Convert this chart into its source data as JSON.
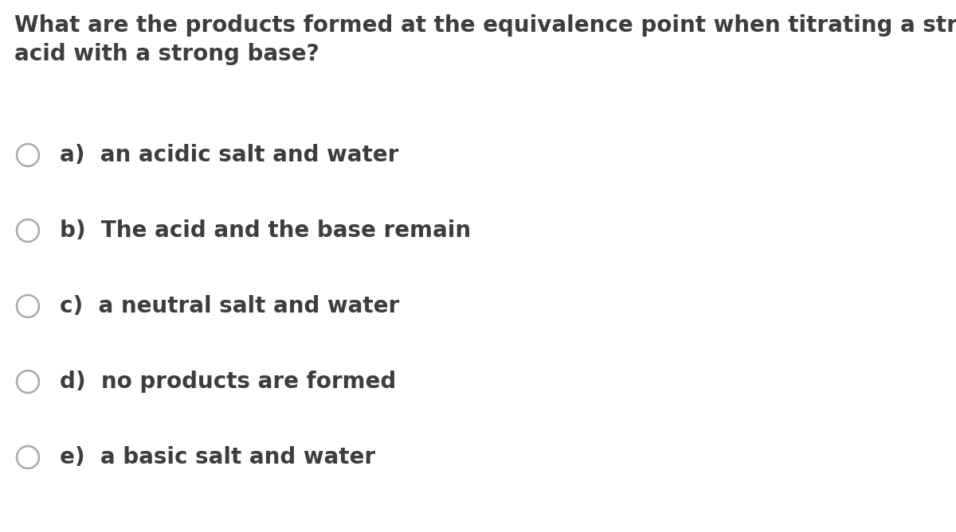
{
  "background_color": "#ffffff",
  "question": "What are the products formed at the equivalence point when titrating a strong\nacid with a strong base?",
  "options": [
    "a)  an acidic salt and water",
    "b)  The acid and the base remain",
    "c)  a neutral salt and water",
    "d)  no products are formed",
    "e)  a basic salt and water"
  ],
  "question_fontsize": 20,
  "option_fontsize": 20,
  "text_color": "#3d3d3d",
  "question_color": "#3d3d3d",
  "circle_color": "#aaaaaa",
  "circle_linewidth": 1.8,
  "background_color_str": "#ffffff"
}
